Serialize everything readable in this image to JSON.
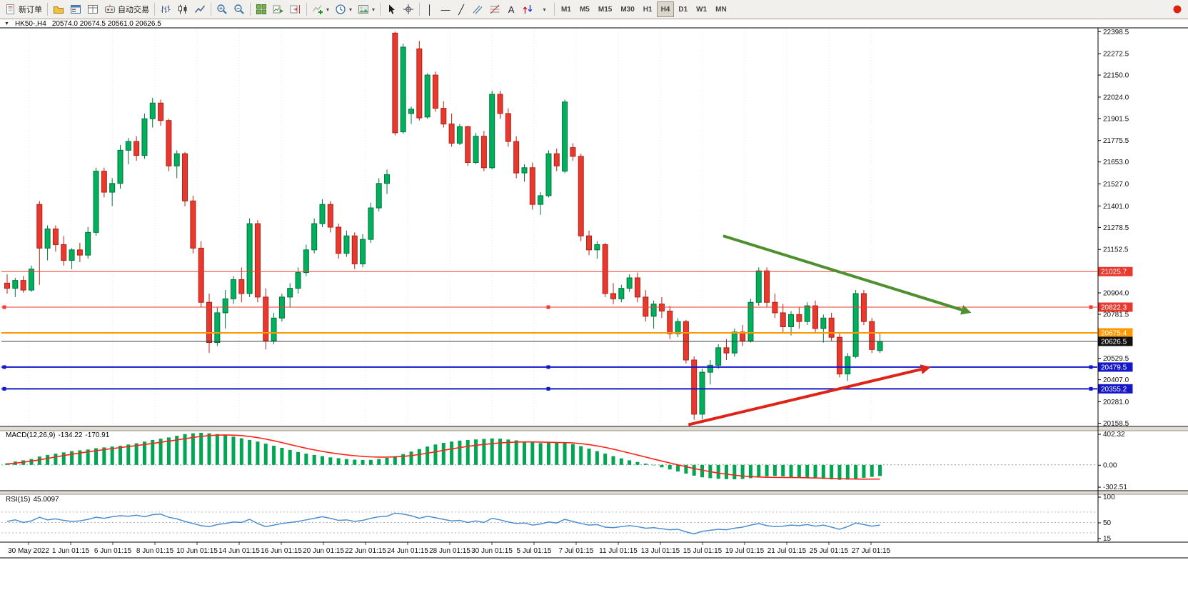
{
  "toolbar": {
    "new_order_label": "新订单",
    "autotrading_label": "自动交易",
    "timeframes": [
      "M1",
      "M5",
      "M15",
      "M30",
      "H1",
      "H4",
      "D1",
      "W1",
      "MN"
    ],
    "active_timeframe": "H4",
    "glyphs": {
      "vertical_line": "│",
      "horizontal_line": "—",
      "trendline": "╱",
      "text_tool": "A",
      "dropdown": "▾"
    },
    "icons": [
      "new-order",
      "profiles",
      "market-watch",
      "data-window",
      "autotrading",
      "bar-chart",
      "candlestick-chart",
      "line-chart",
      "zoom-in",
      "zoom-out",
      "tile-windows",
      "auto-scroll",
      "chart-shift",
      "indicators",
      "periods",
      "templates",
      "cursor",
      "crosshair",
      "vertical-line",
      "horizontal-line",
      "trendline",
      "equidistant-channel",
      "fibonacci",
      "text",
      "arrows",
      "shapes-dropdown",
      "record"
    ]
  },
  "title_bar": {
    "dropdown_glyph": "▼",
    "symbol_period": "HK50-,H4",
    "ohlc": "20574.0 20674.5 20561.0 20626.5"
  },
  "chart_data": {
    "type": "candlestick",
    "symbol": "HK50-",
    "timeframe": "H4",
    "current_ohlc": {
      "open": 20574.0,
      "high": 20674.5,
      "low": 20561.0,
      "close": 20626.5
    },
    "price_axis": {
      "min": 20140,
      "max": 22420,
      "ticks": [
        "22398.5",
        "22272.5",
        "22150.0",
        "22024.0",
        "21901.5",
        "21775.5",
        "21653.0",
        "21527.0",
        "21401.0",
        "21278.5",
        "21152.5",
        "20904.0",
        "20781.5",
        "20529.5",
        "20407.0",
        "20281.0",
        "20158.5"
      ]
    },
    "hlines": [
      {
        "price": 21025.7,
        "label": "21025.7",
        "color": "#f03b2e",
        "badge": "#e8392e",
        "width": 1,
        "handles": false
      },
      {
        "price": 20822.3,
        "label": "20822.3",
        "color": "#f03b2e",
        "badge": "#e8392e",
        "width": 1,
        "handles": true
      },
      {
        "price": 20675.4,
        "label": "20675.4",
        "color": "#ff9800",
        "badge": "#ff9800",
        "width": 2,
        "handles": false
      },
      {
        "price": 20626.5,
        "label": "20626.5",
        "color": "#3c3c3c",
        "badge": "#111111",
        "width": 1,
        "handles": false
      },
      {
        "price": 20479.5,
        "label": "20479.5",
        "color": "#1418c8",
        "badge": "#1418c8",
        "width": 2,
        "handles": true
      },
      {
        "price": 20355.2,
        "label": "20355.2",
        "color": "#1418c8",
        "badge": "#1418c8",
        "width": 2,
        "handles": true
      }
    ],
    "arrows": [
      {
        "from_index": 88.6,
        "from_price": 21230,
        "to_index": 119.3,
        "to_price": 20790,
        "color": "#4e8f2e",
        "width": 4
      },
      {
        "from_index": 84.3,
        "from_price": 20150,
        "to_index": 114.3,
        "to_price": 20480,
        "color": "#e02318",
        "width": 4
      }
    ],
    "x_labels": [
      "30 May 2022",
      "1 Jun 01:15",
      "6 Jun 01:15",
      "8 Jun 01:15",
      "10 Jun 01:15",
      "14 Jun 01:15",
      "16 Jun 01:15",
      "20 Jun 01:15",
      "22 Jun 01:15",
      "24 Jun 01:15",
      "28 Jun 01:15",
      "30 Jun 01:15",
      "5 Jul 01:15",
      "7 Jul 01:15",
      "11 Jul 01:15",
      "13 Jul 01:15",
      "15 Jul 01:15",
      "19 Jul 01:15",
      "21 Jul 01:15",
      "25 Jul 01:15",
      "27 Jul 01:15"
    ],
    "candles": [
      [
        20960,
        21010,
        20900,
        20930
      ],
      [
        20930,
        20990,
        20880,
        20975
      ],
      [
        20975,
        21000,
        20905,
        20920
      ],
      [
        20920,
        21060,
        20910,
        21040
      ],
      [
        21410,
        21430,
        20950,
        21160
      ],
      [
        21160,
        21290,
        21090,
        21270
      ],
      [
        21270,
        21290,
        21140,
        21180
      ],
      [
        21180,
        21230,
        21060,
        21090
      ],
      [
        21090,
        21160,
        21040,
        21150
      ],
      [
        21150,
        21190,
        21080,
        21120
      ],
      [
        21120,
        21280,
        21100,
        21250
      ],
      [
        21250,
        21620,
        21230,
        21600
      ],
      [
        21600,
        21620,
        21450,
        21480
      ],
      [
        21480,
        21560,
        21400,
        21530
      ],
      [
        21530,
        21750,
        21500,
        21720
      ],
      [
        21720,
        21790,
        21640,
        21770
      ],
      [
        21770,
        21800,
        21660,
        21690
      ],
      [
        21690,
        21930,
        21670,
        21900
      ],
      [
        21900,
        22020,
        21850,
        21990
      ],
      [
        21990,
        22010,
        21860,
        21890
      ],
      [
        21890,
        21900,
        21600,
        21630
      ],
      [
        21630,
        21720,
        21560,
        21700
      ],
      [
        21700,
        21710,
        21400,
        21430
      ],
      [
        21430,
        21460,
        21130,
        21160
      ],
      [
        21160,
        21200,
        20820,
        20850
      ],
      [
        20850,
        20900,
        20560,
        20620
      ],
      [
        20620,
        20820,
        20600,
        20790
      ],
      [
        20790,
        20920,
        20700,
        20870
      ],
      [
        20870,
        21000,
        20840,
        20980
      ],
      [
        20980,
        21050,
        20850,
        20900
      ],
      [
        20900,
        21330,
        20880,
        21300
      ],
      [
        21300,
        21320,
        20850,
        20880
      ],
      [
        20880,
        20930,
        20580,
        20630
      ],
      [
        20630,
        20790,
        20610,
        20760
      ],
      [
        20760,
        20900,
        20740,
        20880
      ],
      [
        20880,
        20960,
        20820,
        20930
      ],
      [
        20930,
        21050,
        20900,
        21020
      ],
      [
        21020,
        21180,
        21000,
        21150
      ],
      [
        21150,
        21330,
        21130,
        21300
      ],
      [
        21300,
        21440,
        21280,
        21410
      ],
      [
        21410,
        21430,
        21250,
        21280
      ],
      [
        21280,
        21300,
        21100,
        21130
      ],
      [
        21130,
        21260,
        21110,
        21230
      ],
      [
        21230,
        21250,
        21040,
        21070
      ],
      [
        21070,
        21240,
        21050,
        21210
      ],
      [
        21210,
        21420,
        21190,
        21390
      ],
      [
        21390,
        21560,
        21370,
        21530
      ],
      [
        21530,
        21610,
        21470,
        21580
      ],
      [
        22390,
        22398.5,
        21805,
        21820
      ],
      [
        21825,
        22330,
        21815,
        22310
      ],
      [
        21930,
        21970,
        21870,
        21955
      ],
      [
        22300,
        22345,
        21890,
        21905
      ],
      [
        21910,
        22160,
        21900,
        22150
      ],
      [
        22150,
        22170,
        21940,
        21960
      ],
      [
        21960,
        22000,
        21850,
        21870
      ],
      [
        21870,
        21930,
        21740,
        21760
      ],
      [
        21760,
        21870,
        21750,
        21855
      ],
      [
        21855,
        21860,
        21630,
        21650
      ],
      [
        21650,
        21820,
        21640,
        21800
      ],
      [
        21800,
        21830,
        21600,
        21620
      ],
      [
        21620,
        22060,
        21610,
        22040
      ],
      [
        22040,
        22060,
        21900,
        21930
      ],
      [
        21930,
        21960,
        21740,
        21770
      ],
      [
        21770,
        21800,
        21560,
        21590
      ],
      [
        21590,
        21640,
        21540,
        21620
      ],
      [
        21620,
        21650,
        21380,
        21410
      ],
      [
        21410,
        21480,
        21350,
        21460
      ],
      [
        21460,
        21720,
        21450,
        21700
      ],
      [
        21700,
        21730,
        21600,
        21630
      ],
      [
        21600,
        22010,
        21590,
        21996
      ],
      [
        21735,
        21760,
        21660,
        21685
      ],
      [
        21685,
        21700,
        21200,
        21230
      ],
      [
        21230,
        21260,
        21120,
        21150
      ],
      [
        21150,
        21200,
        21100,
        21180
      ],
      [
        21180,
        21190,
        20880,
        20900
      ],
      [
        20900,
        20960,
        20840,
        20870
      ],
      [
        20870,
        20950,
        20850,
        20930
      ],
      [
        20930,
        21010,
        20910,
        20990
      ],
      [
        20990,
        21020,
        20850,
        20880
      ],
      [
        20880,
        20920,
        20740,
        20770
      ],
      [
        20770,
        20860,
        20700,
        20840
      ],
      [
        20840,
        20880,
        20760,
        20800
      ],
      [
        20800,
        20830,
        20640,
        20670
      ],
      [
        20670,
        20760,
        20650,
        20740
      ],
      [
        20740,
        20750,
        20500,
        20520
      ],
      [
        20520,
        20540,
        20178,
        20210
      ],
      [
        20210,
        20470,
        20180,
        20450
      ],
      [
        20450,
        20520,
        20380,
        20490
      ],
      [
        20490,
        20610,
        20470,
        20590
      ],
      [
        20590,
        20640,
        20520,
        20560
      ],
      [
        20560,
        20700,
        20540,
        20680
      ],
      [
        20680,
        20720,
        20600,
        20630
      ],
      [
        20630,
        20870,
        20620,
        20850
      ],
      [
        20850,
        21050,
        20830,
        21030
      ],
      [
        21030,
        21050,
        20820,
        20850
      ],
      [
        20850,
        20900,
        20760,
        20790
      ],
      [
        20790,
        20840,
        20680,
        20710
      ],
      [
        20710,
        20800,
        20660,
        20780
      ],
      [
        20780,
        20820,
        20700,
        20740
      ],
      [
        20740,
        20850,
        20720,
        20830
      ],
      [
        20830,
        20860,
        20680,
        20700
      ],
      [
        20700,
        20780,
        20620,
        20760
      ],
      [
        20760,
        20790,
        20630,
        20650
      ],
      [
        20650,
        20670,
        20420,
        20440
      ],
      [
        20440,
        20560,
        20400,
        20540
      ],
      [
        20540,
        20920,
        20530,
        20900
      ],
      [
        20900,
        20920,
        20720,
        20740
      ],
      [
        20740,
        20760,
        20560,
        20580
      ],
      [
        20574,
        20674.5,
        20561,
        20626.5
      ]
    ],
    "indicators": {
      "macd": {
        "name": "MACD(12,26,9)",
        "value_main": "-134.22",
        "value_signal": "-170.91",
        "axis_labels": [
          "402.32",
          "0.00",
          "-302.51"
        ],
        "axis_values": [
          402.32,
          0,
          -302.51
        ],
        "colors": {
          "histogram": "#00a651",
          "signal": "#ff2218"
        },
        "histogram": [
          20,
          40,
          55,
          70,
          100,
          120,
          135,
          150,
          165,
          175,
          185,
          200,
          210,
          220,
          230,
          245,
          260,
          280,
          300,
          315,
          330,
          350,
          370,
          380,
          385,
          380,
          370,
          360,
          340,
          320,
          300,
          280,
          255,
          230,
          205,
          180,
          155,
          135,
          120,
          105,
          90,
          80,
          70,
          62,
          58,
          60,
          70,
          85,
          105,
          130,
          160,
          190,
          220,
          245,
          265,
          280,
          292,
          300,
          306,
          312,
          318,
          315,
          305,
          295,
          282,
          270,
          262,
          268,
          272,
          265,
          250,
          225,
          195,
          165,
          135,
          105,
          78,
          55,
          35,
          15,
          -5,
          -30,
          -55,
          -80,
          -105,
          -130,
          -150,
          -160,
          -168,
          -172,
          -174,
          -170,
          -160,
          -148,
          -138,
          -135,
          -140,
          -148,
          -155,
          -160,
          -165,
          -170,
          -175,
          -180,
          -178,
          -168,
          -155,
          -144,
          -134.22
        ],
        "signal": [
          10,
          20,
          32,
          45,
          60,
          78,
          95,
          112,
          128,
          143,
          157,
          170,
          183,
          196,
          208,
          220,
          232,
          245,
          258,
          272,
          286,
          300,
          315,
          330,
          342,
          352,
          358,
          360,
          358,
          352,
          342,
          328,
          310,
          290,
          268,
          245,
          222,
          200,
          180,
          162,
          146,
          132,
          120,
          110,
          102,
          96,
          93,
          93,
          96,
          102,
          112,
          125,
          140,
          157,
          175,
          192,
          208,
          222,
          235,
          246,
          256,
          264,
          270,
          274,
          276,
          276,
          274,
          272,
          270,
          268,
          264,
          256,
          244,
          228,
          210,
          189,
          166,
          142,
          118,
          94,
          70,
          46,
          23,
          0,
          -22,
          -44,
          -64,
          -82,
          -98,
          -112,
          -124,
          -134,
          -141,
          -146,
          -149,
          -151,
          -152,
          -153,
          -154,
          -156,
          -158,
          -160,
          -163,
          -166,
          -169,
          -171,
          -172,
          -171.5,
          -170.91
        ]
      },
      "rsi": {
        "name": "RSI(15)",
        "value": "45.0097",
        "axis_labels": [
          "100",
          "50",
          "15"
        ],
        "range": [
          15,
          100
        ],
        "levels": [
          70,
          50,
          30
        ],
        "color": "#4d8fd1",
        "values": [
          52,
          55,
          50,
          53,
          60,
          55,
          57,
          54,
          52,
          53,
          56,
          60,
          58,
          61,
          63,
          62,
          64,
          61,
          65,
          66,
          60,
          57,
          52,
          48,
          44,
          42,
          46,
          48,
          51,
          50,
          56,
          48,
          42,
          45,
          48,
          50,
          52,
          55,
          58,
          61,
          58,
          54,
          55,
          52,
          54,
          58,
          61,
          62,
          68,
          66,
          63,
          58,
          62,
          59,
          56,
          53,
          54,
          50,
          53,
          50,
          58,
          55,
          51,
          48,
          49,
          45,
          47,
          51,
          49,
          56,
          52,
          48,
          45,
          46,
          41,
          40,
          42,
          44,
          42,
          39,
          40,
          38,
          36,
          37,
          32,
          28,
          33,
          35,
          37,
          36,
          39,
          41,
          45,
          48,
          44,
          42,
          43,
          45,
          44,
          46,
          43,
          45,
          41,
          37,
          42,
          49,
          46,
          43,
          45.0097
        ]
      }
    }
  }
}
